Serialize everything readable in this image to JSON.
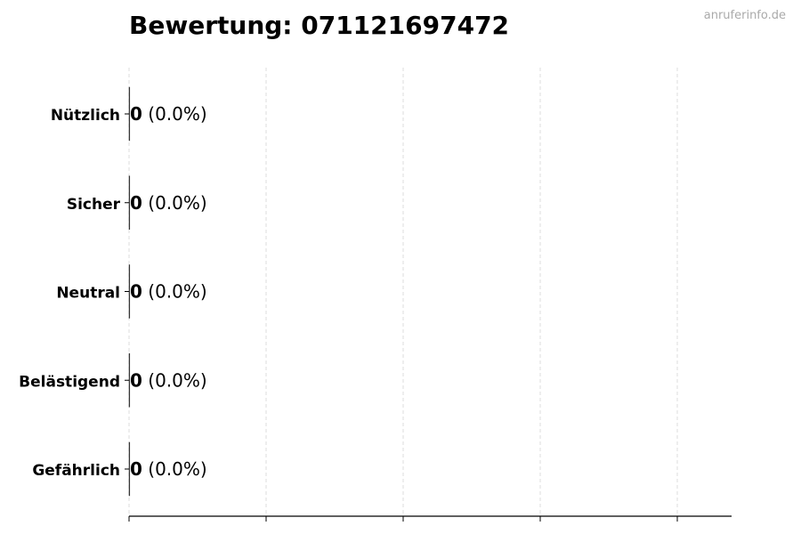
{
  "title": "Bewertung: 071121697472",
  "watermark": "anruferinfo.de",
  "chart_data": {
    "type": "bar",
    "orientation": "horizontal",
    "title": "Bewertung: 071121697472",
    "categories": [
      "Nützlich",
      "Sicher",
      "Neutral",
      "Belästigend",
      "Gefährlich"
    ],
    "values": [
      0,
      0,
      0,
      0,
      0
    ],
    "value_labels": [
      "0",
      "0",
      "0",
      "0",
      "0"
    ],
    "percent_labels": [
      "(0.0%)",
      "(0.0%)",
      "(0.0%)",
      "(0.0%)",
      "(0.0%)"
    ],
    "xlabel": "",
    "ylabel": "",
    "x_ticks_count": 5,
    "x_tick_labels_shown": false,
    "grid": "vertical dashed",
    "colors": {
      "grid": "#dddddd",
      "axis": "#000000",
      "bar_edge": "#333333"
    }
  }
}
